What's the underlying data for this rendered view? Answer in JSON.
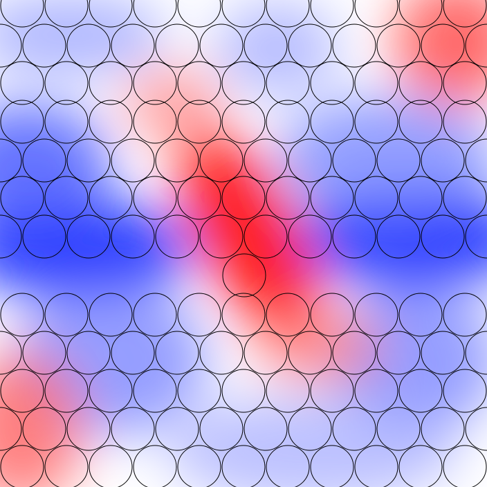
{
  "image": {
    "kind": "simulation-frame",
    "description_visible_text": "",
    "colormap": {
      "negative": "#0000ff",
      "zero": "#ffffff",
      "positive": "#ff0000"
    },
    "outline_color": "#000000",
    "field_background": "#ffffff"
  }
}
